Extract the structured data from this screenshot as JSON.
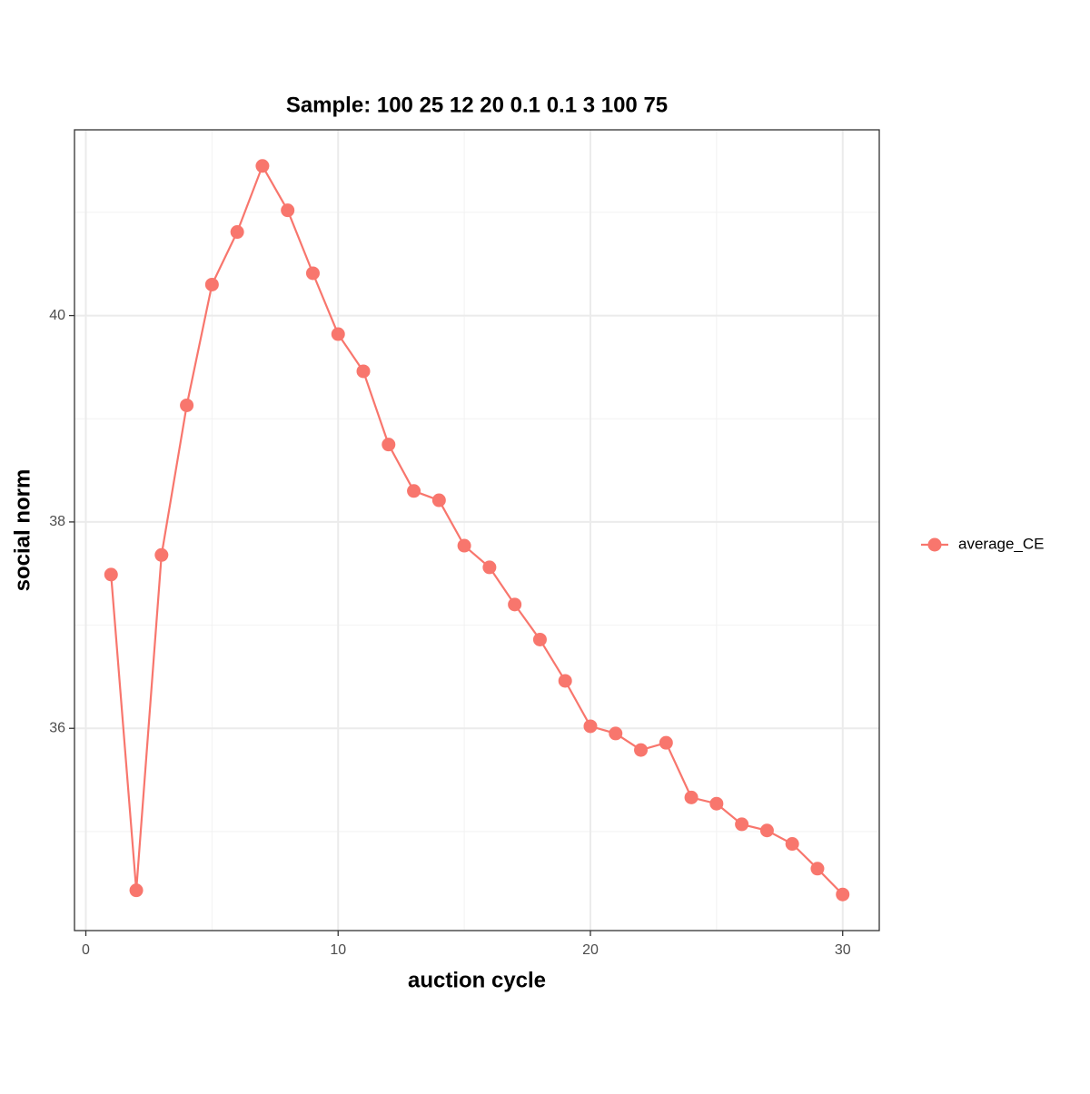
{
  "chart_data": {
    "type": "line",
    "title": "Sample: 100 25 12 20 0.1 0.1 3 100 75",
    "x_label": "auction cycle",
    "y_label": "social norm",
    "x": [
      1,
      2,
      3,
      4,
      5,
      6,
      7,
      8,
      9,
      10,
      11,
      12,
      13,
      14,
      15,
      16,
      17,
      18,
      19,
      20,
      21,
      22,
      23,
      24,
      25,
      26,
      27,
      28,
      29,
      30
    ],
    "series": [
      {
        "name": "average_CE",
        "color": "#f8766d",
        "values": [
          37.49,
          34.43,
          37.68,
          39.13,
          40.3,
          40.81,
          41.45,
          41.02,
          40.41,
          39.82,
          39.46,
          38.75,
          38.3,
          38.21,
          37.77,
          37.56,
          37.2,
          36.86,
          36.46,
          36.02,
          35.95,
          35.79,
          35.86,
          35.33,
          35.27,
          35.07,
          35.01,
          34.88,
          34.64,
          34.39
        ]
      }
    ],
    "xlim": [
      -0.45,
      31.45
    ],
    "ylim": [
      34.04,
      41.8
    ],
    "xticks": [
      0,
      10,
      20,
      30
    ],
    "yticks": [
      36,
      38,
      40
    ],
    "x_minor_grid": [
      5,
      15,
      25
    ],
    "y_minor_grid": [
      35,
      37,
      39,
      41
    ],
    "grid": true,
    "legend_position": "right"
  }
}
